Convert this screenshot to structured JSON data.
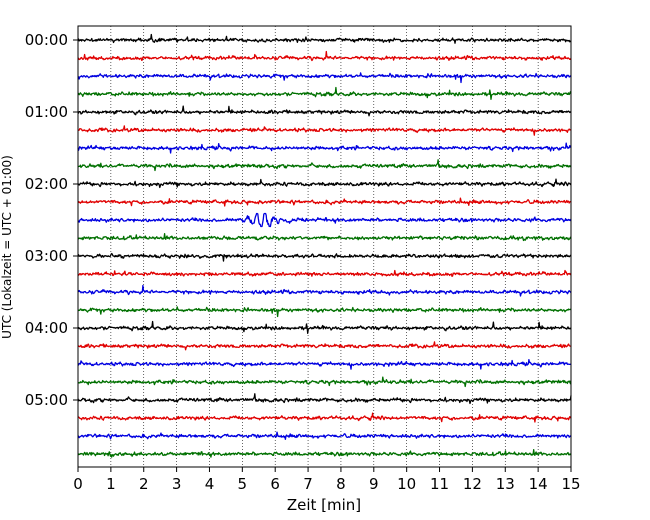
{
  "chart_data": {
    "type": "line",
    "title": "",
    "xlabel": "Zeit  [min]",
    "ylabel": "UTC (Lokalzeit = UTC + 01:00)",
    "xlim": [
      0,
      15
    ],
    "x_ticks": [
      "0",
      "1",
      "2",
      "3",
      "4",
      "5",
      "6",
      "7",
      "8",
      "9",
      "10",
      "11",
      "12",
      "13",
      "14",
      "15"
    ],
    "y_ticks": [
      "00:00",
      "01:00",
      "02:00",
      "03:00",
      "04:00",
      "05:00"
    ],
    "grid": "vertical dotted",
    "trace_count": 24,
    "trace_interval_min": 15,
    "trace_colors": [
      "#000000",
      "#e00000",
      "#0000e0",
      "#007000"
    ],
    "event": {
      "trace_index": 10,
      "start_min": 4.8,
      "end_min": 7.5,
      "peak_min": 5.6
    }
  }
}
